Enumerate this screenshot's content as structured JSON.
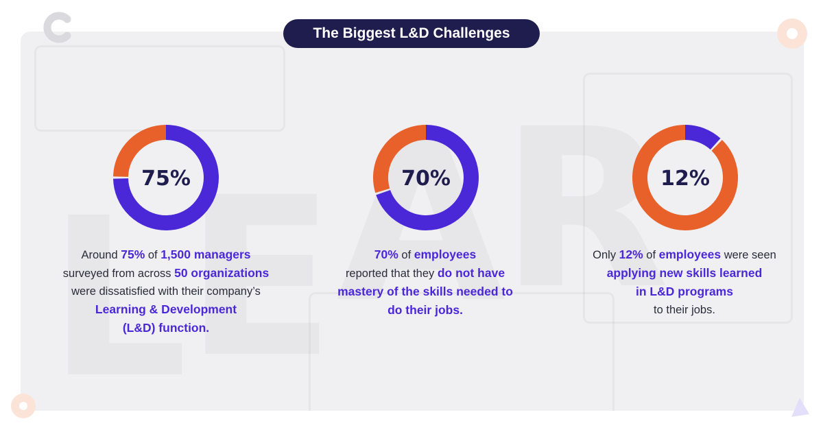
{
  "title": "The Biggest L&D Challenges",
  "colors": {
    "ring": "#4a28d8",
    "accent": "#e8612a",
    "title_bg": "#1f1d4d"
  },
  "chart_data": [
    {
      "type": "pie",
      "label": "75%",
      "values": [
        75,
        25
      ],
      "caption": [
        [
          {
            "t": "Around "
          },
          {
            "t": "75%",
            "hl": true
          },
          {
            "t": " of "
          },
          {
            "t": "1,500 managers",
            "hl": true
          }
        ],
        [
          {
            "t": "surveyed from across "
          },
          {
            "t": "50 organizations",
            "hl": true
          }
        ],
        [
          {
            "t": "were dissatisfied with their company’s"
          }
        ],
        [
          {
            "t": "Learning & Development",
            "hl": true
          }
        ],
        [
          {
            "t": "(L&D) function.",
            "hl": true
          }
        ]
      ]
    },
    {
      "type": "pie",
      "label": "70%",
      "values": [
        70,
        30
      ],
      "caption": [
        [
          {
            "t": "70%",
            "hl": true
          },
          {
            "t": " of "
          },
          {
            "t": "employees",
            "hl": true
          }
        ],
        [
          {
            "t": "reported that they "
          },
          {
            "t": "do not have",
            "hl": true
          }
        ],
        [
          {
            "t": "mastery of the skills needed to",
            "hl": true
          }
        ],
        [
          {
            "t": "do their jobs.",
            "hl": true
          }
        ]
      ]
    },
    {
      "type": "pie",
      "label": "12%",
      "values": [
        12,
        88
      ],
      "caption": [
        [
          {
            "t": "Only "
          },
          {
            "t": "12%",
            "hl": true
          },
          {
            "t": " of "
          },
          {
            "t": "employees",
            "hl": true
          },
          {
            "t": " were seen"
          }
        ],
        [
          {
            "t": "applying new skills learned",
            "hl": true
          }
        ],
        [
          {
            "t": "in L&D programs",
            "hl": true
          }
        ],
        [
          {
            "t": "to their jobs."
          }
        ]
      ]
    }
  ]
}
